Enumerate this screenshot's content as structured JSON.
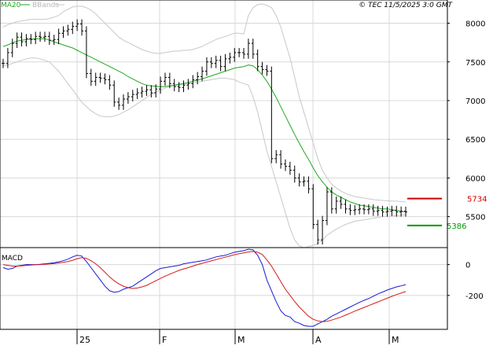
{
  "header": {
    "legend_ma": "MA20",
    "legend_bb": "BBands",
    "copyright": "© TEC 11/5/2025 3:0 GMT"
  },
  "colors": {
    "ma": "#1faa1f",
    "bband": "#c8c8c8",
    "price_bar": "#000000",
    "macd_line": "#1a1ad6",
    "signal_line": "#d61a1a",
    "resistance": "#cc0000",
    "support": "#009900",
    "frame": "#000000",
    "grid": "#d8d8d8",
    "axis_bg": "#ffffff"
  },
  "chart_data": [
    {
      "type": "line",
      "title": "",
      "chart_kind": "ohlc-bars",
      "xlabel": "",
      "ylabel": "",
      "ylim": [
        5100,
        8300
      ],
      "y_ticks": [
        5500,
        6000,
        6500,
        7000,
        7500,
        8000
      ],
      "x_ticks": [
        {
          "label": "25",
          "index": 0
        },
        {
          "label": "F",
          "index": 1
        },
        {
          "label": "M",
          "index": 2
        },
        {
          "label": "A",
          "index": 3
        },
        {
          "label": "M",
          "index": 4
        }
      ],
      "levels": [
        {
          "label": "5734",
          "value": 5734,
          "color": "#cc0000"
        },
        {
          "label": "5386",
          "value": 5386,
          "color": "#009900"
        }
      ],
      "grid": true,
      "legend": "top-left",
      "series": [
        {
          "name": "MA20",
          "kind": "moving-average"
        },
        {
          "name": "BBands",
          "kind": "bollinger-bands"
        }
      ],
      "prices": [
        7480,
        7620,
        7740,
        7820,
        7760,
        7800,
        7790,
        7830,
        7820,
        7830,
        7780,
        7790,
        7870,
        7900,
        7920,
        7960,
        7990,
        7900,
        7350,
        7250,
        7300,
        7290,
        7270,
        7200,
        6980,
        6940,
        7020,
        7050,
        7080,
        7100,
        7120,
        7140,
        7100,
        7150,
        7250,
        7300,
        7220,
        7180,
        7170,
        7200,
        7220,
        7270,
        7310,
        7380,
        7500,
        7480,
        7520,
        7440,
        7540,
        7560,
        7620,
        7620,
        7600,
        7740,
        7600,
        7440,
        7400,
        7380,
        6250,
        6300,
        6180,
        6150,
        6100,
        6000,
        5950,
        5960,
        5860,
        5400,
        5200,
        5450,
        5820,
        5600,
        5700,
        5660,
        5600,
        5580,
        5590,
        5600,
        5590,
        5600,
        5570,
        5580,
        5560,
        5570,
        5580,
        5560,
        5570,
        5560
      ],
      "ma20": [
        7700,
        7720,
        7745,
        7770,
        7780,
        7790,
        7795,
        7798,
        7800,
        7800,
        7780,
        7760,
        7740,
        7720,
        7700,
        7680,
        7650,
        7620,
        7590,
        7560,
        7530,
        7500,
        7470,
        7440,
        7410,
        7380,
        7350,
        7310,
        7280,
        7250,
        7220,
        7200,
        7190,
        7185,
        7180,
        7180,
        7190,
        7200,
        7210,
        7220,
        7235,
        7250,
        7265,
        7280,
        7300,
        7320,
        7340,
        7360,
        7380,
        7400,
        7420,
        7430,
        7440,
        7460,
        7450,
        7400,
        7330,
        7250,
        7150,
        7040,
        6920,
        6800,
        6680,
        6560,
        6450,
        6340,
        6240,
        6130,
        6030,
        5950,
        5880,
        5820,
        5780,
        5750,
        5720,
        5690,
        5670,
        5650,
        5640,
        5630,
        5620,
        5610,
        5600,
        5600,
        5590,
        5580,
        5570,
        5560
      ],
      "bb_upper": [
        7950,
        7980,
        8000,
        8020,
        8030,
        8040,
        8050,
        8050,
        8050,
        8050,
        8060,
        8080,
        8100,
        8150,
        8180,
        8210,
        8220,
        8220,
        8200,
        8170,
        8120,
        8060,
        8000,
        7940,
        7880,
        7820,
        7780,
        7750,
        7720,
        7690,
        7660,
        7640,
        7620,
        7610,
        7610,
        7620,
        7630,
        7640,
        7640,
        7650,
        7650,
        7660,
        7680,
        7700,
        7730,
        7760,
        7790,
        7810,
        7830,
        7850,
        7870,
        7870,
        7860,
        8100,
        8200,
        8240,
        8250,
        8230,
        8200,
        8100,
        7950,
        7750,
        7550,
        7300,
        7050,
        6850,
        6650,
        6450,
        6250,
        6100,
        6000,
        5920,
        5870,
        5830,
        5800,
        5780,
        5760,
        5750,
        5740,
        5730,
        5720,
        5715,
        5710,
        5705,
        5700,
        5700,
        5695,
        5690
      ],
      "bb_lower": [
        7450,
        7460,
        7480,
        7500,
        7520,
        7540,
        7550,
        7550,
        7540,
        7520,
        7500,
        7440,
        7380,
        7300,
        7220,
        7140,
        7060,
        6980,
        6920,
        6870,
        6830,
        6800,
        6790,
        6790,
        6800,
        6820,
        6850,
        6880,
        6920,
        6960,
        7000,
        7040,
        7080,
        7110,
        7140,
        7160,
        7180,
        7190,
        7200,
        7210,
        7220,
        7230,
        7240,
        7250,
        7260,
        7270,
        7280,
        7290,
        7290,
        7280,
        7270,
        7240,
        7220,
        7200,
        7050,
        6850,
        6600,
        6350,
        6150,
        5950,
        5750,
        5550,
        5350,
        5200,
        5120,
        5100,
        5110,
        5130,
        5150,
        5200,
        5260,
        5300,
        5340,
        5370,
        5400,
        5420,
        5440,
        5450,
        5460,
        5470,
        5480,
        5490,
        5500,
        5505,
        5510,
        5515,
        5520,
        5525
      ]
    },
    {
      "type": "line",
      "title": "MACD",
      "xlabel": "",
      "ylabel": "",
      "ylim": [
        -420,
        110
      ],
      "y_ticks": [
        0,
        -200
      ],
      "grid": true,
      "series": [
        {
          "name": "",
          "color": "#1a1ad6",
          "values": [
            -20,
            -30,
            -25,
            -10,
            -5,
            0,
            0,
            0,
            2,
            5,
            8,
            12,
            18,
            25,
            35,
            50,
            60,
            55,
            20,
            -20,
            -60,
            -100,
            -140,
            -170,
            -180,
            -175,
            -160,
            -150,
            -140,
            -120,
            -100,
            -80,
            -60,
            -40,
            -25,
            -20,
            -15,
            -10,
            -5,
            5,
            10,
            15,
            20,
            25,
            30,
            40,
            50,
            55,
            60,
            70,
            80,
            85,
            90,
            100,
            95,
            60,
            0,
            -100,
            -170,
            -240,
            -300,
            -330,
            -340,
            -370,
            -380,
            -395,
            -400,
            -400,
            -385,
            -370,
            -355,
            -335,
            -320,
            -305,
            -290,
            -275,
            -260,
            -245,
            -232,
            -220,
            -205,
            -190,
            -178,
            -165,
            -155,
            -145,
            -138,
            -130
          ]
        },
        {
          "name": "",
          "color": "#d61a1a",
          "values": [
            0,
            -5,
            -10,
            -10,
            -8,
            -5,
            -3,
            -1,
            0,
            2,
            4,
            6,
            10,
            14,
            20,
            28,
            38,
            45,
            40,
            25,
            5,
            -20,
            -50,
            -80,
            -105,
            -125,
            -140,
            -150,
            -155,
            -152,
            -145,
            -135,
            -120,
            -105,
            -90,
            -75,
            -62,
            -50,
            -38,
            -28,
            -20,
            -10,
            0,
            8,
            16,
            24,
            32,
            40,
            48,
            56,
            64,
            70,
            76,
            82,
            85,
            80,
            65,
            30,
            -10,
            -60,
            -110,
            -160,
            -200,
            -240,
            -275,
            -305,
            -335,
            -355,
            -365,
            -370,
            -368,
            -360,
            -350,
            -340,
            -328,
            -315,
            -302,
            -290,
            -278,
            -266,
            -254,
            -242,
            -230,
            -218,
            -206,
            -195,
            -185,
            -175
          ]
        }
      ]
    }
  ]
}
